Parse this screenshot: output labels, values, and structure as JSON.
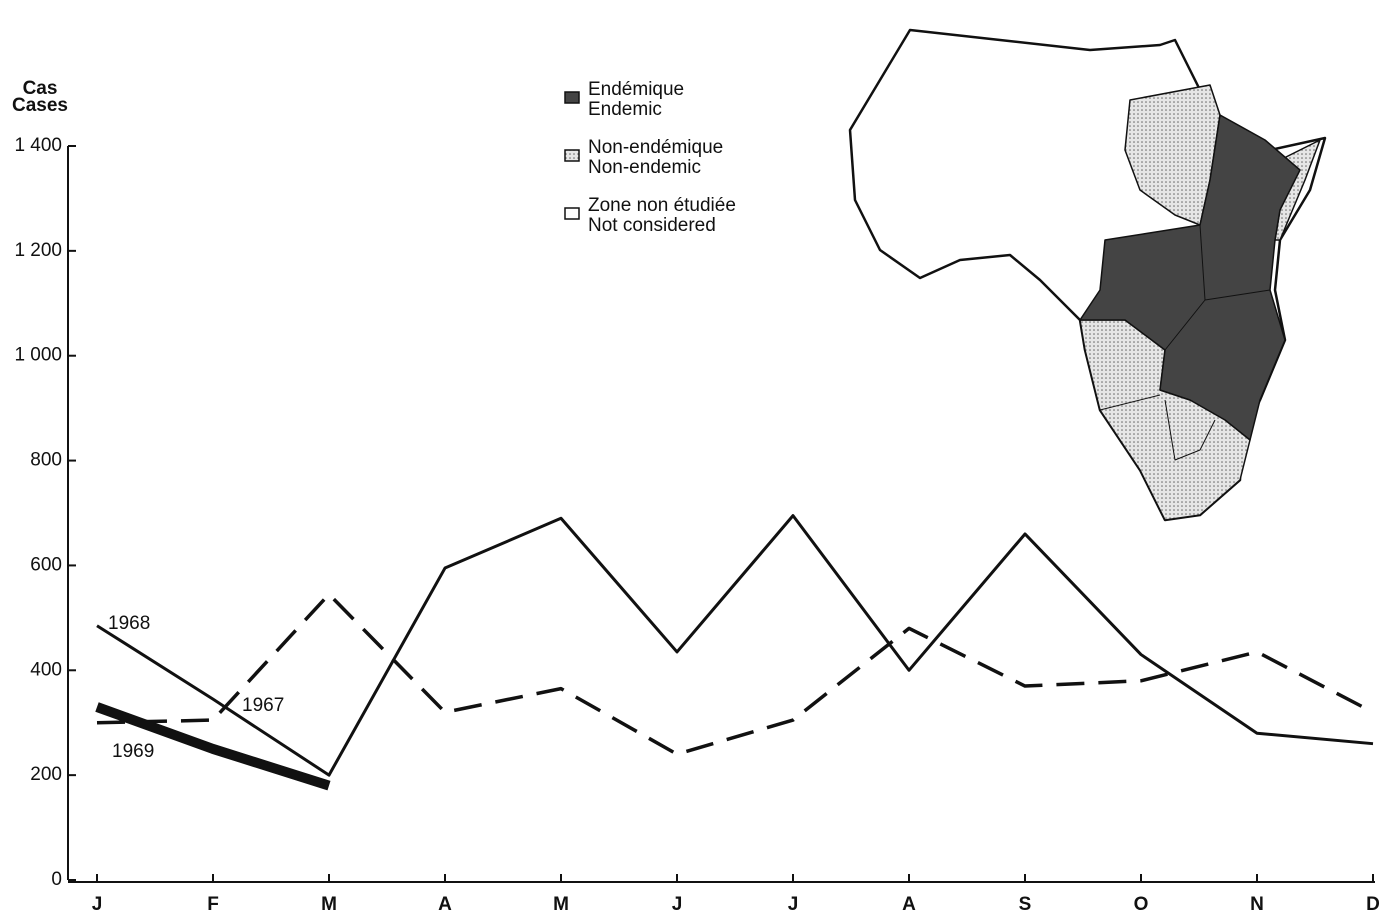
{
  "chart_data": {
    "type": "line",
    "y_label": [
      "Cas",
      "Cases"
    ],
    "categories": [
      "J",
      "F",
      "M",
      "A",
      "M",
      "J",
      "J",
      "A",
      "S",
      "O",
      "N",
      "D"
    ],
    "series": [
      {
        "name": "1968",
        "color": "#111111",
        "style": "solid",
        "values": [
          485,
          345,
          200,
          595,
          690,
          435,
          695,
          400,
          660,
          430,
          280,
          260
        ]
      },
      {
        "name": "1967",
        "color": "#111111",
        "style": "dashed",
        "values": [
          300,
          305,
          545,
          320,
          365,
          240,
          305,
          480,
          370,
          380,
          435,
          320
        ]
      },
      {
        "name": "1969",
        "color": "#111111",
        "style": "thick",
        "values": [
          330,
          250,
          180,
          null,
          null,
          null,
          null,
          null,
          null,
          null,
          null,
          null
        ]
      }
    ],
    "ylim": [
      0,
      1400
    ],
    "yticks": [
      0,
      200,
      400,
      600,
      800,
      {
        "value": 1000,
        "label": "1 000"
      },
      {
        "value": 1200,
        "label": "1 200"
      },
      {
        "value": 1400,
        "label": "1 400"
      }
    ],
    "grid": false,
    "map_legend": [
      {
        "fr": "Endémique",
        "en": "Endemic",
        "fill": "#444444"
      },
      {
        "fr": "Non-endémique",
        "en": "Non-endemic",
        "fill": "#d8d8d8"
      },
      {
        "fr": "Zone non étudiée",
        "en": "Not considered",
        "fill": "#ffffff"
      }
    ]
  }
}
